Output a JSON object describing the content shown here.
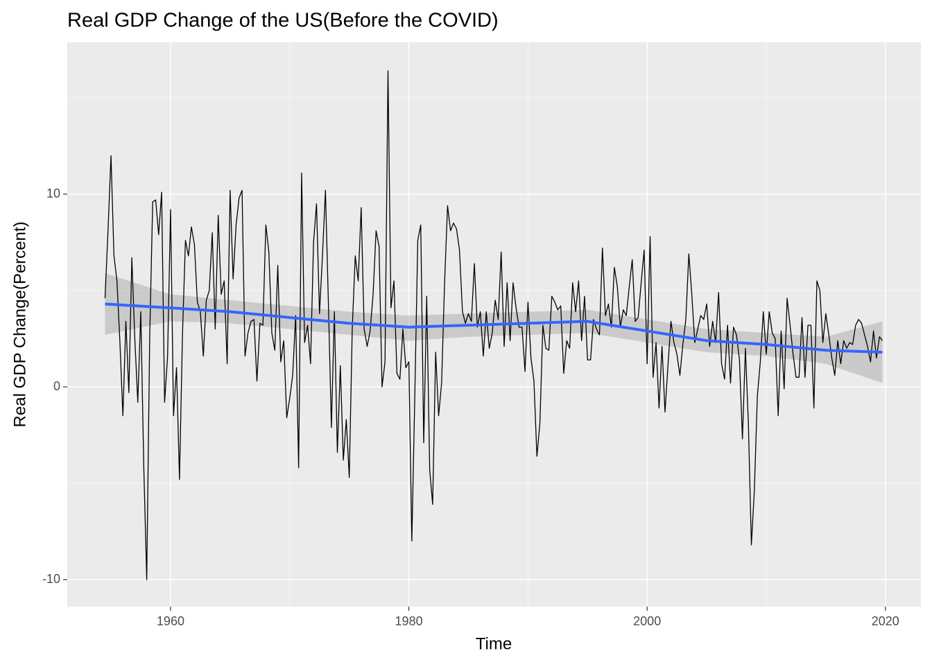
{
  "chart_data": {
    "type": "line",
    "title": "Real GDP Change of the US(Before the COVID)",
    "x_label": "Time",
    "y_label": "Real GDP Change(Percent)",
    "color": "#000000",
    "x": [
      1954.5,
      1954.75,
      1955,
      1955.25,
      1955.5,
      1955.75,
      1956,
      1956.25,
      1956.5,
      1956.75,
      1957,
      1957.25,
      1957.5,
      1957.75,
      1958,
      1958.25,
      1958.5,
      1958.75,
      1959,
      1959.25,
      1959.5,
      1959.75,
      1960,
      1960.25,
      1960.5,
      1960.75,
      1961,
      1961.25,
      1961.5,
      1961.75,
      1962,
      1962.25,
      1962.5,
      1962.75,
      1963,
      1963.25,
      1963.5,
      1963.75,
      1964,
      1964.25,
      1964.5,
      1964.75,
      1965,
      1965.25,
      1965.5,
      1965.75,
      1966,
      1966.25,
      1966.5,
      1966.75,
      1967,
      1967.25,
      1967.5,
      1967.75,
      1968,
      1968.25,
      1968.5,
      1968.75,
      1969,
      1969.25,
      1969.5,
      1969.75,
      1970,
      1970.25,
      1970.5,
      1970.75,
      1971,
      1971.25,
      1971.5,
      1971.75,
      1972,
      1972.25,
      1972.5,
      1972.75,
      1973,
      1973.25,
      1973.5,
      1973.75,
      1974,
      1974.25,
      1974.5,
      1974.75,
      1975,
      1975.25,
      1975.5,
      1975.75,
      1976,
      1976.25,
      1976.5,
      1976.75,
      1977,
      1977.25,
      1977.5,
      1977.75,
      1978,
      1978.25,
      1978.5,
      1978.75,
      1979,
      1979.25,
      1979.5,
      1979.75,
      1980,
      1980.25,
      1980.5,
      1980.75,
      1981,
      1981.25,
      1981.5,
      1981.75,
      1982,
      1982.25,
      1982.5,
      1982.75,
      1983,
      1983.25,
      1983.5,
      1983.75,
      1984,
      1984.25,
      1984.5,
      1984.75,
      1985,
      1985.25,
      1985.5,
      1985.75,
      1986,
      1986.25,
      1986.5,
      1986.75,
      1987,
      1987.25,
      1987.5,
      1987.75,
      1988,
      1988.25,
      1988.5,
      1988.75,
      1989,
      1989.25,
      1989.5,
      1989.75,
      1990,
      1990.25,
      1990.5,
      1990.75,
      1991,
      1991.25,
      1991.5,
      1991.75,
      1992,
      1992.25,
      1992.5,
      1992.75,
      1993,
      1993.25,
      1993.5,
      1993.75,
      1994,
      1994.25,
      1994.5,
      1994.75,
      1995,
      1995.25,
      1995.5,
      1995.75,
      1996,
      1996.25,
      1996.5,
      1996.75,
      1997,
      1997.25,
      1997.5,
      1997.75,
      1998,
      1998.25,
      1998.5,
      1998.75,
      1999,
      1999.25,
      1999.5,
      1999.75,
      2000,
      2000.25,
      2000.5,
      2000.75,
      2001,
      2001.25,
      2001.5,
      2001.75,
      2002,
      2002.25,
      2002.5,
      2002.75,
      2003,
      2003.25,
      2003.5,
      2003.75,
      2004,
      2004.25,
      2004.5,
      2004.75,
      2005,
      2005.25,
      2005.5,
      2005.75,
      2006,
      2006.25,
      2006.5,
      2006.75,
      2007,
      2007.25,
      2007.5,
      2007.75,
      2008,
      2008.25,
      2008.5,
      2008.75,
      2009,
      2009.25,
      2009.5,
      2009.75,
      2010,
      2010.25,
      2010.5,
      2010.75,
      2011,
      2011.25,
      2011.5,
      2011.75,
      2012,
      2012.25,
      2012.5,
      2012.75,
      2013,
      2013.25,
      2013.5,
      2013.75,
      2014,
      2014.25,
      2014.5,
      2014.75,
      2015,
      2015.25,
      2015.5,
      2015.75,
      2016,
      2016.25,
      2016.5,
      2016.75,
      2017,
      2017.25,
      2017.5,
      2017.75,
      2018,
      2018.25,
      2018.5,
      2018.75,
      2019,
      2019.25,
      2019.5,
      2019.75
    ],
    "values": [
      4.6,
      8.1,
      12.0,
      6.8,
      5.5,
      2.3,
      -1.5,
      3.4,
      -0.3,
      6.7,
      2.5,
      -0.8,
      3.9,
      -4.1,
      -10.0,
      2.6,
      9.6,
      9.7,
      7.9,
      10.1,
      -0.8,
      1.6,
      9.2,
      -1.5,
      1.0,
      -4.8,
      2.7,
      7.6,
      6.8,
      8.3,
      7.4,
      4.4,
      3.9,
      1.6,
      4.5,
      5.0,
      8.0,
      3.0,
      8.9,
      4.8,
      5.5,
      1.2,
      10.2,
      5.6,
      8.4,
      9.8,
      10.2,
      1.6,
      2.8,
      3.4,
      3.5,
      0.3,
      3.3,
      3.2,
      8.4,
      7.0,
      2.8,
      1.9,
      6.3,
      1.3,
      2.4,
      -1.6,
      -0.6,
      0.6,
      3.7,
      -4.2,
      11.1,
      2.3,
      3.2,
      1.2,
      7.5,
      9.5,
      3.8,
      6.8,
      10.2,
      4.3,
      -2.1,
      3.9,
      -3.4,
      1.1,
      -3.8,
      -1.7,
      -4.7,
      3.0,
      6.8,
      5.5,
      9.3,
      3.0,
      2.1,
      2.9,
      4.8,
      8.1,
      7.3,
      0.0,
      1.3,
      16.4,
      4.1,
      5.5,
      0.7,
      0.4,
      3.0,
      1.0,
      1.3,
      -8.0,
      -0.5,
      7.6,
      8.4,
      -2.9,
      4.7,
      -4.3,
      -6.1,
      1.8,
      -1.5,
      0.2,
      5.4,
      9.4,
      8.1,
      8.5,
      8.2,
      7.1,
      3.9,
      3.3,
      3.8,
      3.4,
      6.4,
      3.1,
      3.9,
      1.6,
      3.9,
      2.0,
      2.8,
      4.5,
      3.5,
      7.0,
      2.1,
      5.4,
      2.4,
      5.4,
      4.1,
      3.1,
      3.1,
      0.8,
      4.4,
      1.5,
      0.3,
      -3.6,
      -1.9,
      3.2,
      2.0,
      1.9,
      4.7,
      4.4,
      4.0,
      4.2,
      0.7,
      2.4,
      2.0,
      5.4,
      3.9,
      5.5,
      2.4,
      4.7,
      1.4,
      1.4,
      3.5,
      3.0,
      2.7,
      7.2,
      3.7,
      4.3,
      3.1,
      6.2,
      5.2,
      3.1,
      4.0,
      3.7,
      5.2,
      6.6,
      3.4,
      3.6,
      5.4,
      7.1,
      1.2,
      7.8,
      0.5,
      2.3,
      -1.1,
      2.1,
      -1.3,
      1.1,
      3.4,
      2.3,
      1.7,
      0.6,
      2.2,
      3.5,
      6.9,
      4.8,
      2.3,
      3.0,
      3.7,
      3.5,
      4.3,
      2.1,
      3.4,
      2.3,
      4.9,
      1.2,
      0.4,
      3.2,
      0.2,
      3.1,
      2.7,
      1.4,
      -2.7,
      2.0,
      -1.9,
      -8.2,
      -5.4,
      -0.5,
      1.3,
      3.9,
      1.7,
      3.9,
      2.8,
      2.5,
      -1.5,
      2.9,
      -0.1,
      4.6,
      3.2,
      1.7,
      0.5,
      0.5,
      3.6,
      0.5,
      3.2,
      3.2,
      -1.1,
      5.5,
      5.0,
      2.3,
      3.8,
      2.7,
      1.5,
      0.6,
      2.4,
      1.2,
      2.4,
      2.0,
      2.3,
      2.2,
      3.2,
      3.5,
      3.3,
      2.7,
      2.1,
      1.3,
      2.9,
      1.5,
      2.6,
      2.4
    ],
    "smooth": {
      "color": "#3366ff",
      "fill": "#999999",
      "x": [
        1954.5,
        1960,
        1965,
        1970,
        1975,
        1980,
        1985,
        1990,
        1995,
        2000,
        2005,
        2010,
        2015,
        2019.75
      ],
      "values": [
        4.3,
        4.1,
        3.9,
        3.6,
        3.3,
        3.1,
        3.2,
        3.3,
        3.4,
        2.9,
        2.4,
        2.2,
        1.9,
        1.8
      ],
      "lower": [
        2.7,
        3.4,
        3.3,
        3.0,
        2.7,
        2.4,
        2.6,
        2.7,
        2.8,
        2.3,
        1.8,
        1.6,
        1.2,
        0.2
      ],
      "upper": [
        5.9,
        4.8,
        4.5,
        4.2,
        3.9,
        3.7,
        3.8,
        3.9,
        4.0,
        3.5,
        3.0,
        2.8,
        2.6,
        3.4
      ]
    },
    "xlim": [
      1951.33,
      2022.98
    ],
    "ylim": [
      -11.4,
      17.88
    ],
    "xticks": [
      1960,
      1980,
      2000,
      2020
    ],
    "yticks": [
      -10,
      0,
      10
    ],
    "grid": true
  }
}
